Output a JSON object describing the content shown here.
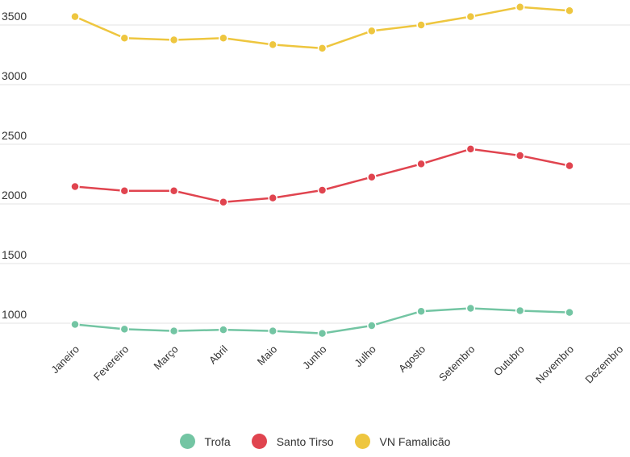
{
  "chart_data": {
    "type": "line",
    "categories": [
      "Janeiro",
      "Fevereiro",
      "Março",
      "Abril",
      "Maio",
      "Junho",
      "Julho",
      "Agosto",
      "Setembro",
      "Outubro",
      "Novembro",
      "Dezembro"
    ],
    "y_ticks": [
      "1000",
      "1500",
      "2000",
      "2500",
      "3000",
      "3500"
    ],
    "ylim": [
      850,
      3700
    ],
    "grid": true,
    "legend_position": "bottom",
    "series": [
      {
        "name": "Trofa",
        "color": "#73c5a3",
        "values": [
          990,
          950,
          935,
          945,
          935,
          915,
          980,
          1100,
          1125,
          1105,
          1090,
          null
        ]
      },
      {
        "name": "Santo Tirso",
        "color": "#e0444f",
        "values": [
          2145,
          2110,
          2110,
          2015,
          2050,
          2115,
          2225,
          2335,
          2460,
          2405,
          2320,
          null
        ]
      },
      {
        "name": "VN Famalicão",
        "color": "#eec63f",
        "values": [
          3570,
          3390,
          3375,
          3390,
          3335,
          3305,
          3450,
          3500,
          3570,
          3650,
          3620,
          null
        ]
      }
    ]
  }
}
